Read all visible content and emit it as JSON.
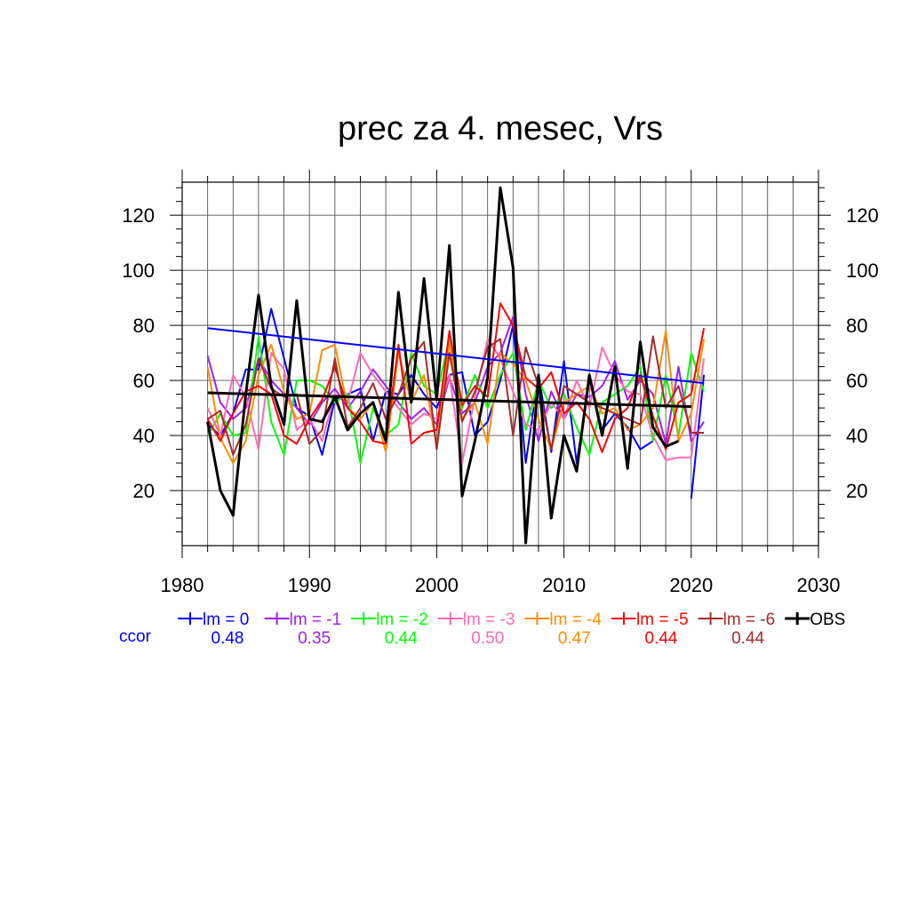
{
  "chart_data": {
    "type": "line",
    "title": "prec za 4. mesec, Vrs",
    "xlabel": "",
    "ylabel": "",
    "xlim": [
      1980,
      2030
    ],
    "ylim": [
      0,
      132
    ],
    "x_ticks": [
      1980,
      1990,
      2000,
      2010,
      2020,
      2030
    ],
    "y_ticks": [
      20,
      40,
      60,
      80,
      100,
      120
    ],
    "grid": true,
    "legend_position": "bottom",
    "ccor_label": "ccor",
    "x": [
      1982,
      1983,
      1984,
      1985,
      1986,
      1987,
      1988,
      1989,
      1990,
      1991,
      1992,
      1993,
      1994,
      1995,
      1996,
      1997,
      1998,
      1999,
      2000,
      2001,
      2002,
      2003,
      2004,
      2005,
      2006,
      2007,
      2008,
      2009,
      2010,
      2011,
      2012,
      2013,
      2014,
      2015,
      2016,
      2017,
      2018,
      2019,
      2020,
      2021
    ],
    "series": [
      {
        "name": "lm = 0",
        "color": "#0000ff",
        "ccor": "0.48",
        "values": [
          44,
          40,
          48,
          64,
          64,
          86,
          68,
          50,
          47,
          33,
          53,
          55,
          57,
          38,
          56,
          55,
          62,
          55,
          50,
          62,
          63,
          40,
          45,
          60,
          80,
          30,
          62,
          34,
          67,
          30,
          60,
          42,
          48,
          43,
          35,
          38,
          null,
          null,
          17,
          62
        ],
        "trend": [
          79,
          59
        ]
      },
      {
        "name": "lm = -1",
        "color": "#a020f0",
        "ccor": "0.35",
        "values": [
          69,
          52,
          46,
          50,
          68,
          60,
          55,
          50,
          44,
          52,
          57,
          50,
          56,
          64,
          58,
          52,
          46,
          50,
          44,
          61,
          48,
          52,
          65,
          70,
          83,
          55,
          38,
          56,
          46,
          55,
          54,
          58,
          67,
          53,
          60,
          55,
          37,
          65,
          38,
          45
        ]
      },
      {
        "name": "lm = -2",
        "color": "#00ff00",
        "ccor": "0.44",
        "values": [
          40,
          48,
          40,
          41,
          76,
          45,
          33,
          60,
          60,
          58,
          52,
          55,
          30,
          50,
          40,
          44,
          70,
          58,
          55,
          75,
          50,
          62,
          50,
          62,
          70,
          42,
          60,
          50,
          55,
          43,
          33,
          52,
          55,
          58,
          65,
          38,
          62,
          40,
          70,
          56
        ]
      },
      {
        "name": "lm = -3",
        "color": "#ff69b4",
        "ccor": "0.50",
        "values": [
          50,
          40,
          62,
          54,
          35,
          70,
          64,
          42,
          46,
          38,
          55,
          52,
          70,
          62,
          56,
          50,
          44,
          48,
          46,
          62,
          30,
          54,
          75,
          68,
          56,
          44,
          42,
          52,
          46,
          60,
          50,
          72,
          62,
          56,
          55,
          40,
          31,
          32,
          32,
          68
        ]
      },
      {
        "name": "lm = -4",
        "color": "#ff8c00",
        "ccor": "0.47",
        "values": [
          65,
          39,
          30,
          38,
          62,
          73,
          56,
          46,
          48,
          71,
          73,
          50,
          46,
          52,
          34,
          70,
          52,
          62,
          36,
          74,
          46,
          52,
          37,
          70,
          66,
          60,
          46,
          35,
          52,
          55,
          58,
          48,
          50,
          42,
          44,
          50,
          78,
          38,
          48,
          75
        ]
      },
      {
        "name": "lm = -5",
        "color": "#ff0000",
        "ccor": "0.44",
        "values": [
          46,
          38,
          48,
          56,
          58,
          55,
          40,
          37,
          46,
          53,
          65,
          50,
          45,
          38,
          37,
          73,
          37,
          41,
          42,
          78,
          51,
          58,
          54,
          88,
          80,
          61,
          57,
          63,
          48,
          52,
          46,
          34,
          46,
          50,
          62,
          47,
          35,
          52,
          55,
          79
        ]
      },
      {
        "name": "lm = -6",
        "color": "#a52a2a",
        "ccor": "0.44",
        "values": [
          46,
          49,
          33,
          44,
          68,
          57,
          54,
          55,
          37,
          42,
          68,
          43,
          50,
          59,
          46,
          55,
          68,
          74,
          35,
          70,
          45,
          56,
          72,
          75,
          40,
          72,
          58,
          35,
          58,
          55,
          52,
          50,
          48,
          46,
          44,
          76,
          50,
          58,
          41,
          41
        ]
      },
      {
        "name": "OBS",
        "color": "#000000",
        "ccor": "",
        "values": [
          45,
          20,
          11,
          55,
          91,
          58,
          44,
          89,
          46,
          45,
          54,
          42,
          48,
          52,
          38,
          92,
          52,
          97,
          53,
          109,
          18,
          38,
          61,
          130,
          101,
          1,
          62,
          10,
          40,
          27,
          62,
          40,
          65,
          28,
          74,
          43,
          36,
          38,
          null,
          null
        ],
        "trend": [
          55.5,
          50.5
        ]
      }
    ]
  }
}
